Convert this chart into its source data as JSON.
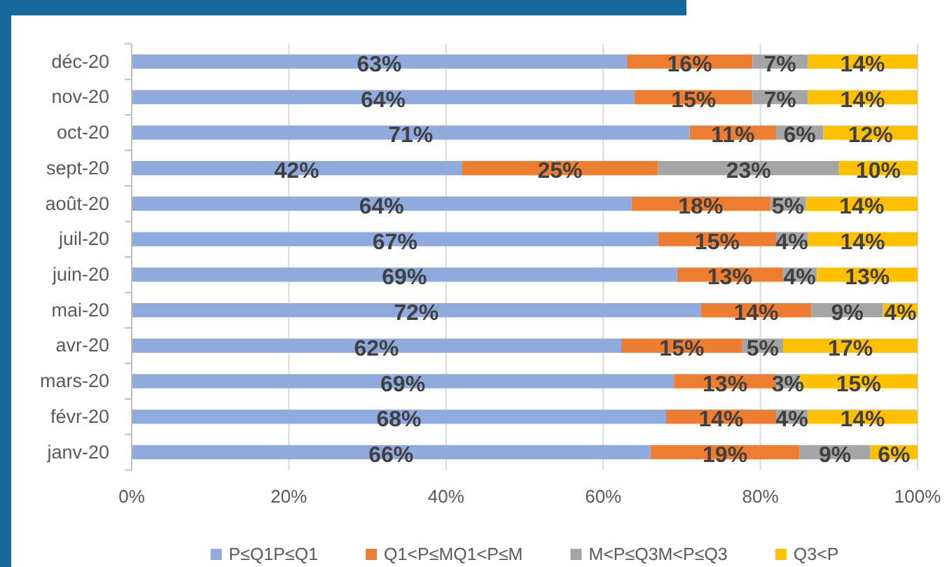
{
  "chart_data": {
    "type": "bar",
    "orientation": "horizontal",
    "stacked": true,
    "categories": [
      "déc-20",
      "nov-20",
      "oct-20",
      "sept-20",
      "août-20",
      "juil-20",
      "juin-20",
      "mai-20",
      "avr-20",
      "mars-20",
      "févr-20",
      "janv-20"
    ],
    "series": [
      {
        "name": "P≤Q1P≤Q1",
        "color": "#8faadc",
        "values": [
          63,
          64,
          71,
          42,
          63.6,
          67,
          69.4,
          72.4,
          62.3,
          69,
          68,
          66
        ],
        "value_labels": [
          "63%",
          "64%",
          "71%",
          "42%",
          "64%",
          "67%",
          "69%",
          "72%",
          "62%",
          "69%",
          "68%",
          "66%"
        ]
      },
      {
        "name": "Q1<P≤MQ1<P≤M",
        "color": "#ed7d31",
        "values": [
          16,
          15,
          11,
          25,
          17.6,
          15,
          13.4,
          14.1,
          15.4,
          13,
          14,
          19
        ],
        "value_labels": [
          "16%",
          "15%",
          "11%",
          "25%",
          "18%",
          "15%",
          "13%",
          "14%",
          "15%",
          "13%",
          "14%",
          "19%"
        ]
      },
      {
        "name": "M<P≤Q3M<P≤Q3",
        "color": "#a5a5a5",
        "values": [
          7,
          7,
          6,
          23,
          4.6,
          4,
          4.4,
          9.1,
          5.2,
          3,
          4,
          9
        ],
        "value_labels": [
          "7%",
          "7%",
          "6%",
          "23%",
          "5%",
          "4%",
          "4%",
          "9%",
          "5%",
          "3%",
          "4%",
          "9%"
        ]
      },
      {
        "name": "Q3<P",
        "color": "#ffc000",
        "values": [
          14,
          14,
          12,
          10,
          14.2,
          14,
          12.8,
          4.4,
          17.1,
          15,
          14,
          6
        ],
        "value_labels": [
          "14%",
          "14%",
          "12%",
          "10%",
          "14%",
          "14%",
          "13%",
          "4%",
          "17%",
          "15%",
          "14%",
          "6%"
        ]
      }
    ],
    "xlim": [
      0,
      100
    ],
    "xticks": [
      {
        "value": 0,
        "label": "0%"
      },
      {
        "value": 20,
        "label": "20%"
      },
      {
        "value": 40,
        "label": "40%"
      },
      {
        "value": 60,
        "label": "60%"
      },
      {
        "value": 80,
        "label": "80%"
      },
      {
        "value": 100,
        "label": "100%"
      }
    ],
    "grid": "x",
    "legend": "bottom"
  }
}
